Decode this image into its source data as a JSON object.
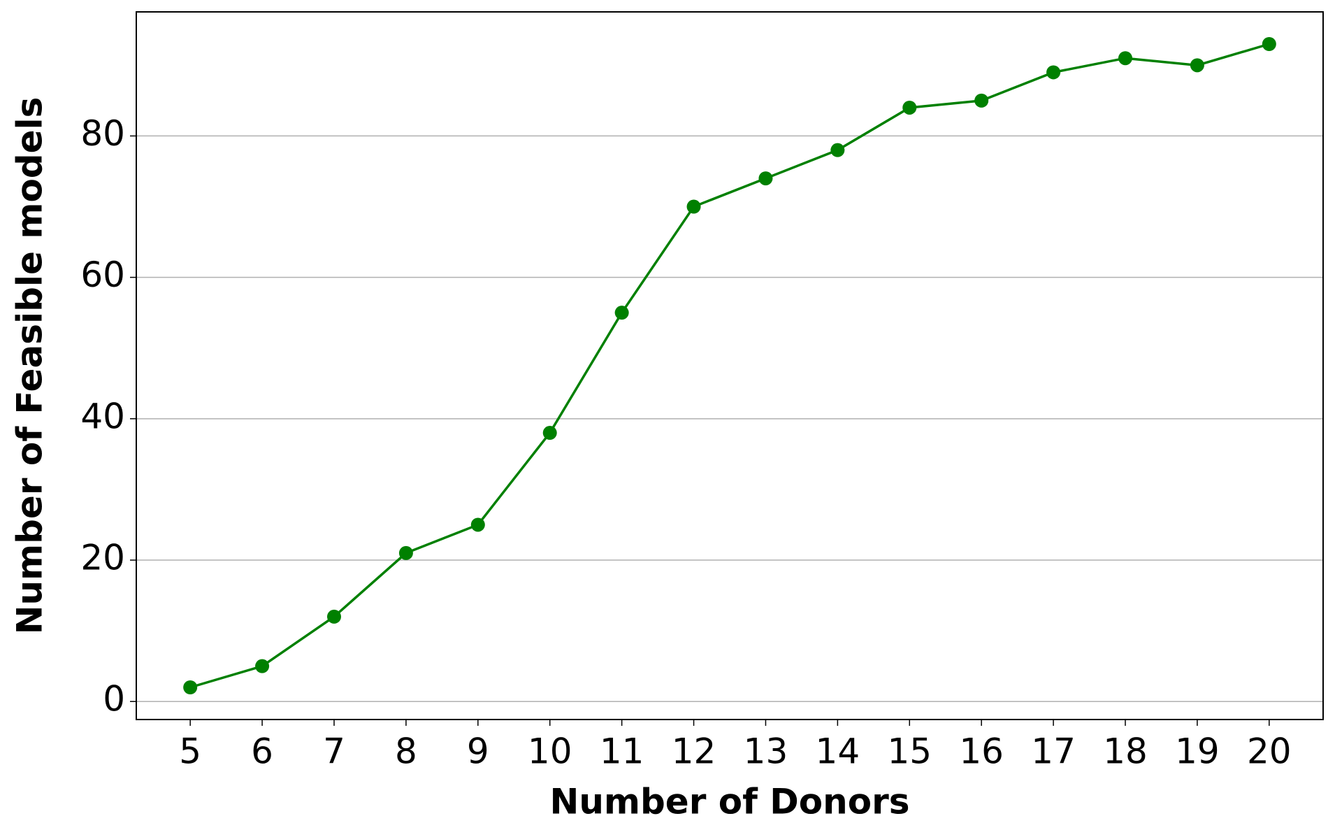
{
  "chart_data": {
    "type": "line",
    "xlabel": "Number of Donors",
    "ylabel": "Number of Feasible models",
    "x": [
      5,
      6,
      7,
      8,
      9,
      10,
      11,
      12,
      13,
      14,
      15,
      16,
      17,
      18,
      19,
      20
    ],
    "series": [
      {
        "color": "#008000",
        "values": [
          2,
          5,
          12,
          21,
          25,
          38,
          55,
          70,
          74,
          78,
          84,
          85,
          89,
          91,
          90,
          93
        ]
      }
    ],
    "xlim": [
      4.25,
      20.75
    ],
    "ylim": [
      -2.55,
      97.55
    ],
    "xticks": [
      5,
      6,
      7,
      8,
      9,
      10,
      11,
      12,
      13,
      14,
      15,
      16,
      17,
      18,
      19,
      20
    ],
    "yticks": [
      0,
      20,
      40,
      60,
      80
    ],
    "grid": "y"
  }
}
